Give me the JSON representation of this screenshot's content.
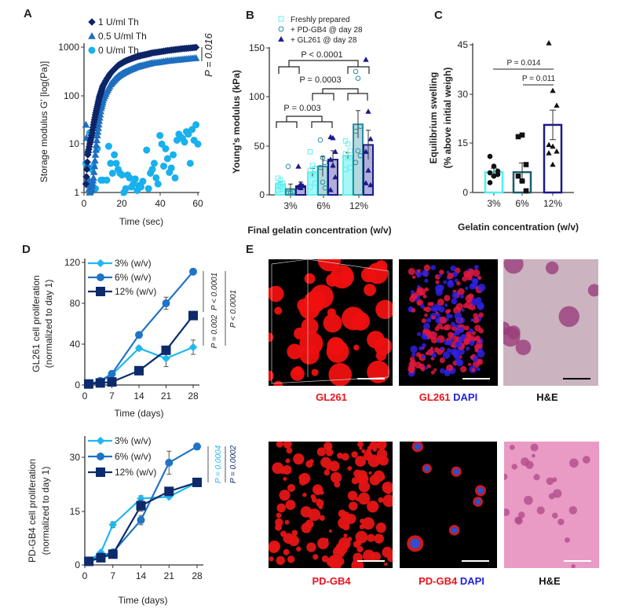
{
  "panel_labels": {
    "a": "A",
    "b": "B",
    "c": "C",
    "d": "D",
    "e": "E"
  },
  "chart_data": [
    {
      "id": "A",
      "type": "scatter",
      "title": "",
      "xlabel": "Time (sec)",
      "ylabel": "Storage modulus G' [log(Pa)]",
      "xlim": [
        0,
        60
      ],
      "ylim": [
        1,
        1000
      ],
      "yscale": "log",
      "xticks": [
        "0",
        "20",
        "40",
        "60"
      ],
      "yticks": [
        "1",
        "10",
        "100",
        "1000"
      ],
      "legend_position": "top-left",
      "annotation": "P = 0.016",
      "series": [
        {
          "name": "1 U/ml Th",
          "color": "#0d2466",
          "marker": "diamond",
          "x": [
            1,
            2,
            3,
            4,
            5,
            6,
            7,
            8,
            9,
            10,
            12,
            14,
            16,
            18,
            20,
            22,
            25,
            28,
            30,
            33,
            36,
            40,
            44,
            48,
            52,
            56,
            60
          ],
          "y": [
            1.5,
            6,
            10,
            15,
            25,
            40,
            60,
            90,
            120,
            160,
            220,
            290,
            350,
            420,
            470,
            520,
            580,
            640,
            670,
            710,
            760,
            800,
            850,
            890,
            930,
            960,
            1000
          ]
        },
        {
          "name": "0.5 U/ml Th",
          "color": "#1f6fc0",
          "marker": "triangle",
          "x": [
            1,
            2,
            3,
            4,
            5,
            6,
            7,
            8,
            9,
            10,
            12,
            14,
            16,
            18,
            20,
            22,
            25,
            28,
            30,
            33,
            36,
            40,
            44,
            48,
            52,
            56,
            60
          ],
          "y": [
            25,
            2,
            1,
            1.2,
            2,
            6,
            15,
            30,
            55,
            80,
            120,
            170,
            210,
            250,
            280,
            310,
            350,
            390,
            410,
            440,
            470,
            490,
            520,
            540,
            560,
            580,
            600
          ]
        },
        {
          "name": "0 U/ml Th",
          "color": "#19b0ec",
          "marker": "circle",
          "x": [
            1,
            3,
            4,
            5,
            6,
            7,
            9,
            10,
            12,
            13,
            14,
            15,
            16,
            17,
            18,
            19,
            20,
            21,
            22,
            23,
            24,
            25,
            26,
            27,
            28,
            29,
            30,
            31,
            33,
            34,
            35,
            36,
            37,
            38,
            39,
            40,
            41,
            42,
            43,
            44,
            45,
            46,
            47,
            48,
            49,
            50,
            51,
            52,
            53,
            54,
            55,
            56,
            57,
            58,
            59,
            60
          ],
          "y": [
            4,
            17,
            3,
            3.5,
            1.2,
            8,
            1.8,
            1.8,
            1.8,
            9,
            4,
            2.5,
            6,
            4,
            3,
            2.5,
            2.3,
            1,
            1.2,
            2.3,
            2,
            1.3,
            1.5,
            1.9,
            1.1,
            1.4,
            1.3,
            1.7,
            7.5,
            1.2,
            2.5,
            3,
            4,
            2,
            1.5,
            15,
            10,
            3.5,
            8,
            5,
            2.6,
            3.2,
            6,
            2,
            12,
            16,
            14,
            13,
            11,
            18,
            16,
            4,
            20,
            12,
            25,
            10
          ]
        }
      ]
    },
    {
      "id": "B",
      "type": "bar",
      "title": "",
      "xlabel": "Final gelatin concentration (w/v)",
      "ylabel": "Young's modulus (kPa)",
      "categories": [
        "3%",
        "6%",
        "12%"
      ],
      "ylim": [
        0,
        150
      ],
      "yticks": [
        "0",
        "50",
        "100",
        "150"
      ],
      "legend_position": "top",
      "series": [
        {
          "name": "Freshly prepared",
          "color": "#5ff0f0",
          "values": [
            11,
            23,
            40
          ],
          "sem": [
            2,
            4,
            3
          ],
          "points": [
            [
              17,
              15,
              12,
              10,
              8,
              6,
              5
            ],
            [
              44,
              30,
              27,
              25,
              20,
              12,
              8
            ],
            [
              55,
              52,
              45,
              42,
              38,
              28,
              26
            ]
          ]
        },
        {
          "name": "+ PD-GB4 @ day 28",
          "color": "#2a8ea0",
          "values": [
            6,
            29,
            72
          ],
          "sem": [
            5,
            10,
            14
          ],
          "points": [
            [
              29,
              2,
              3,
              2
            ],
            [
              56,
              38,
              33,
              28,
              13,
              7
            ],
            [
              126,
              119,
              70,
              65,
              45,
              40,
              33
            ]
          ]
        },
        {
          "name": "+ GL261 @ day 28",
          "color": "#1a1a8c",
          "values": [
            9,
            36,
            51
          ],
          "sem": [
            4,
            9,
            15
          ],
          "points": [
            [
              29,
              11,
              9,
              8,
              7
            ],
            [
              59,
              58,
              44,
              36,
              30,
              18,
              5
            ],
            [
              138,
              85,
              57,
              44,
              25,
              10,
              12
            ]
          ]
        }
      ],
      "comparisons": [
        "P < 0.0001",
        "P = 0.0003",
        "P = 0.003"
      ]
    },
    {
      "id": "C",
      "type": "bar",
      "title": "",
      "xlabel": "Gelatin concentration (w/v)",
      "ylabel_line1": "Equilibrium swelling",
      "ylabel_line2": "(% above initial weigh)",
      "categories": [
        "3%",
        "6%",
        "12%"
      ],
      "ylim": [
        0,
        45
      ],
      "yticks": [
        "0",
        "15",
        "30",
        "45"
      ],
      "colors": [
        "#4ef0f7",
        "#1a5f6a",
        "#1a1a8c"
      ],
      "values": [
        6.2,
        6.2,
        20.6
      ],
      "sem": [
        1.2,
        2.8,
        4.5
      ],
      "points": [
        [
          11,
          8,
          6.5,
          6,
          5,
          5.5,
          3
        ],
        [
          17,
          17.5,
          8.5,
          5,
          3.5,
          0.5
        ],
        [
          45.5,
          31,
          26.5,
          14.5,
          14,
          12.5,
          12,
          8.5
        ]
      ],
      "comparisons": [
        "P = 0.014",
        "P = 0.011"
      ]
    },
    {
      "id": "D-GL261",
      "type": "line",
      "title": "",
      "xlabel": "Time (days)",
      "ylabel_line1": "GL261 cell proliferation",
      "ylabel_line2": "(normalized to day 1)",
      "x": [
        1,
        4,
        7,
        14,
        21,
        28
      ],
      "xlim": [
        0,
        28
      ],
      "ylim": [
        0,
        120
      ],
      "xticks": [
        "0",
        "7",
        "14",
        "21",
        "28"
      ],
      "yticks": [
        "0",
        "40",
        "80",
        "120"
      ],
      "legend_position": "top-left",
      "series": [
        {
          "name": "3% (w/v)",
          "color": "#1fb8f0",
          "marker": "diamond",
          "values": [
            1,
            3,
            10,
            36,
            26,
            37
          ],
          "err": [
            0,
            0,
            1,
            2,
            8,
            7
          ]
        },
        {
          "name": "6% (w/v)",
          "color": "#1f74c4",
          "marker": "circle",
          "values": [
            1,
            4,
            11,
            49,
            80,
            111
          ],
          "err": [
            0,
            0,
            1,
            1,
            6,
            2
          ]
        },
        {
          "name": "12% (w/v)",
          "color": "#0d2a6b",
          "marker": "square",
          "values": [
            1,
            2,
            3,
            14,
            34,
            68
          ],
          "err": [
            0,
            0,
            0,
            1,
            2,
            2
          ]
        }
      ],
      "annotations": [
        "P < 0.0001",
        "P = 0.002",
        "P < 0.0001"
      ]
    },
    {
      "id": "D-PDGB4",
      "type": "line",
      "title": "",
      "xlabel": "Time (days)",
      "ylabel_line1": "PD-GB4 cell proliferation",
      "ylabel_line2": "(normalized to day 1)",
      "x": [
        1,
        4,
        7,
        14,
        21,
        28
      ],
      "xlim": [
        0,
        28
      ],
      "ylim": [
        0,
        33
      ],
      "xticks": [
        "0",
        "7",
        "14",
        "21",
        "28"
      ],
      "yticks": [
        "0",
        "15",
        "30"
      ],
      "legend_position": "top-left",
      "series": [
        {
          "name": "3% (w/v)",
          "color": "#1fb8f0",
          "marker": "diamond",
          "values": [
            1,
            3.5,
            11.2,
            18.5,
            19,
            23
          ],
          "err": [
            0,
            0.3,
            0.8,
            0.8,
            0.3,
            0.3
          ]
        },
        {
          "name": "6% (w/v)",
          "color": "#1f74c4",
          "marker": "circle",
          "values": [
            1,
            2.5,
            3.5,
            12.5,
            28.5,
            33
          ],
          "err": [
            0,
            0.3,
            0.3,
            1.3,
            3.2,
            0.9
          ]
        },
        {
          "name": "12% (w/v)",
          "color": "#0d2a6b",
          "marker": "square",
          "values": [
            1,
            2,
            3,
            16.5,
            20.5,
            23
          ],
          "err": [
            0,
            0.2,
            0.2,
            1.5,
            0.5,
            0.3
          ]
        }
      ],
      "annotations": [
        "P = 0.0004",
        "P = 0.0002"
      ],
      "annotation_colors": [
        "#1fb8f0",
        "#0d2a6b"
      ]
    }
  ],
  "panel_e": {
    "row1": {
      "label1": "GL261",
      "label2a": "GL261",
      "label2b": "DAPI",
      "label3": "H&E"
    },
    "row2": {
      "label1": "PD-GB4",
      "label2a": "PD-GB4",
      "label2b": "DAPI",
      "label3": "H&E"
    }
  }
}
